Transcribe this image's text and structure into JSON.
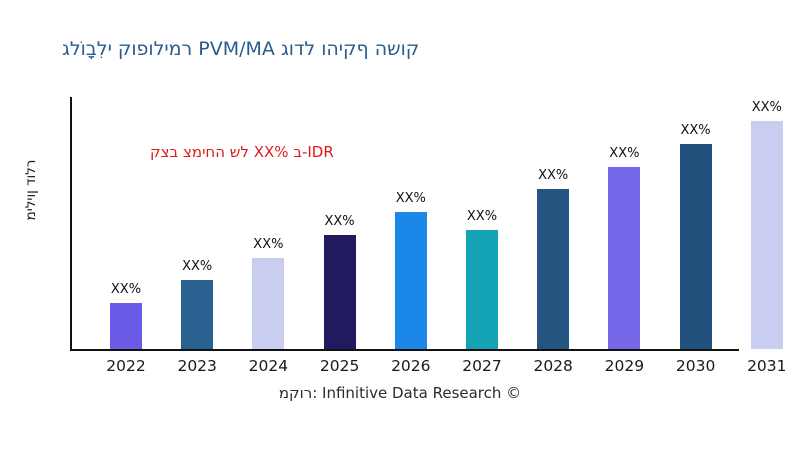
{
  "title": {
    "text": "גלוֹבָלִי קופולימר PVM/MA גודל והיקף השוק",
    "color": "#2a5c8e"
  },
  "annotation": {
    "text": "קצב צמיחה של XX% ב-IDR",
    "color": "#e01a1a"
  },
  "y_axis": {
    "label": "מיליון דולר"
  },
  "footer": {
    "text": "מקור: Infinitive Data Research ©"
  },
  "chart_data": {
    "type": "bar",
    "title": "גלוֹבָלִי קופולימר PVM/MA גודל והיקף השוק",
    "xlabel": "",
    "ylabel": "מיליון דולר",
    "grid": false,
    "legend": false,
    "axis_note": "no numeric y-axis ticks shown; all bar values masked as XX%",
    "categories": [
      "2022",
      "2023",
      "2024",
      "2025",
      "2026",
      "2027",
      "2028",
      "2029",
      "2030",
      "2031"
    ],
    "bars": [
      {
        "year": "2022",
        "label": "XX%",
        "relative_height": 46,
        "color": "#6a5ce6"
      },
      {
        "year": "2023",
        "label": "XX%",
        "relative_height": 69,
        "color": "#28608f"
      },
      {
        "year": "2024",
        "label": "XX%",
        "relative_height": 91,
        "color": "#c9cdf0"
      },
      {
        "year": "2025",
        "label": "XX%",
        "relative_height": 114,
        "color": "#211a5e"
      },
      {
        "year": "2026",
        "label": "XX%",
        "relative_height": 137,
        "color": "#1b87e8"
      },
      {
        "year": "2027",
        "label": "XX%",
        "relative_height": 119,
        "color": "#13a3b5"
      },
      {
        "year": "2028",
        "label": "XX%",
        "relative_height": 160,
        "color": "#235580"
      },
      {
        "year": "2029",
        "label": "XX%",
        "relative_height": 182,
        "color": "#7568e8"
      },
      {
        "year": "2030",
        "label": "XX%",
        "relative_height": 205,
        "color": "#20517c"
      },
      {
        "year": "2031",
        "label": "XX%",
        "relative_height": 228,
        "color": "#c9cdf0"
      }
    ]
  }
}
